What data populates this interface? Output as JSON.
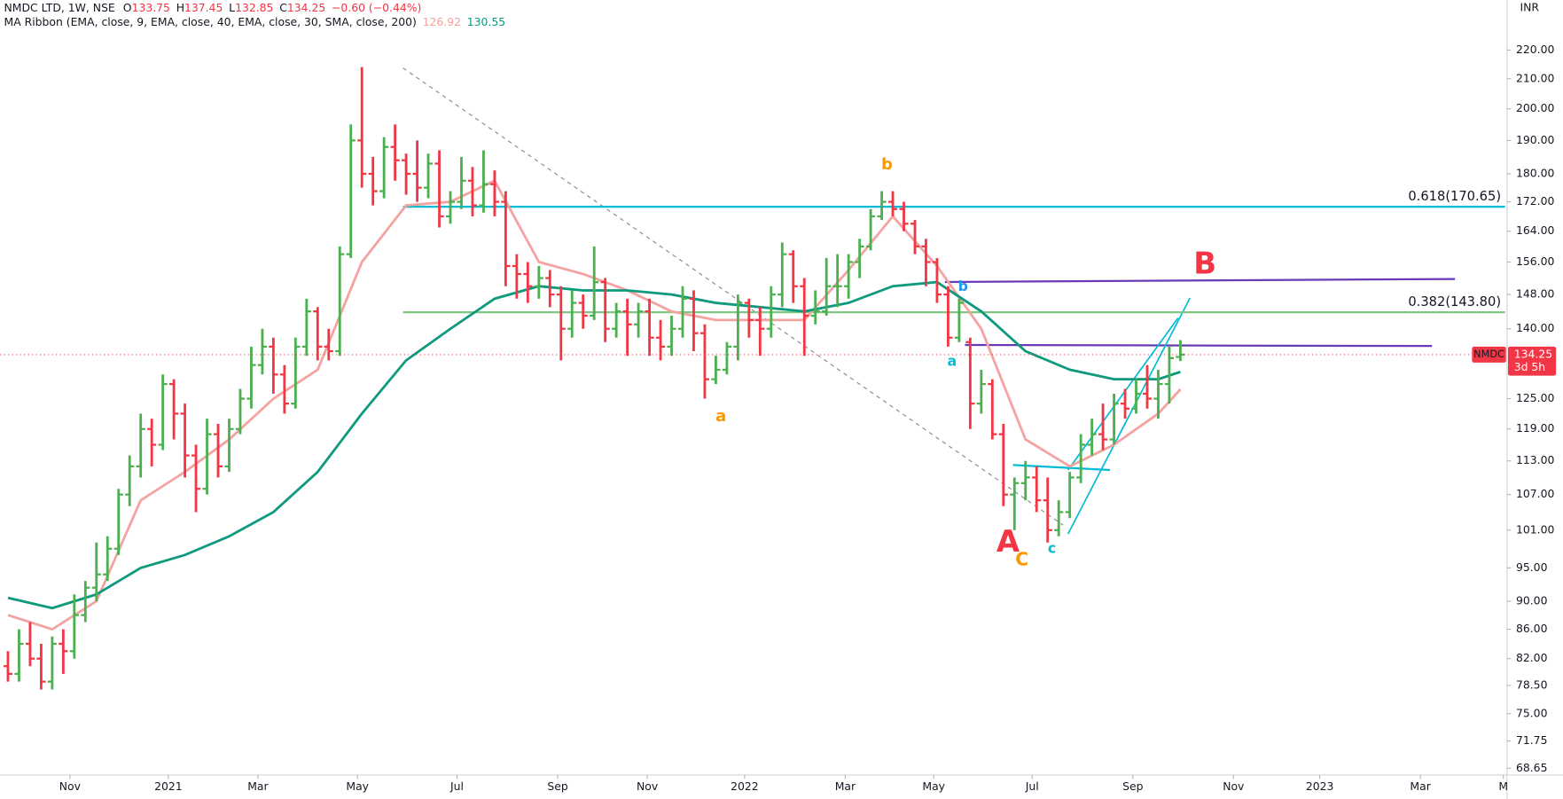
{
  "chart_data": {
    "type": "ohlc",
    "title": "NMDC LTD, 1W, NSE",
    "ohlc_prefixes": [
      "O",
      "H",
      "L",
      "C"
    ],
    "change": "−0.60 (−0.44%)",
    "indicator": "MA Ribbon (EMA, close, 9, EMA, close, 40, EMA, close, 30, SMA, close, 200)",
    "symbol": "NMDC",
    "countdown": "3d 5h",
    "currency": "INR",
    "up_color": "#4caf50",
    "down_color": "#f23645",
    "open": [
      81,
      80,
      84,
      82,
      79,
      84,
      83,
      88,
      92,
      94,
      98,
      107,
      112,
      119,
      116,
      128,
      122,
      114,
      108,
      118,
      112,
      119,
      125,
      132,
      136,
      130,
      124,
      136,
      144,
      136,
      135,
      158,
      190,
      180,
      175,
      188,
      184,
      180,
      176,
      183,
      168,
      172,
      178,
      171,
      177,
      172,
      155,
      153,
      150,
      152,
      148,
      140,
      146,
      143,
      151,
      140,
      144,
      141,
      144,
      138,
      136,
      140,
      147,
      139,
      129,
      131,
      136,
      146,
      142,
      140,
      148,
      158,
      150,
      143,
      144,
      150,
      150,
      156,
      160,
      168,
      172,
      170,
      166,
      160,
      156,
      148,
      138,
      137,
      124,
      128,
      118,
      107,
      109,
      110,
      106,
      101,
      104,
      110,
      116,
      118,
      117,
      124,
      123,
      126,
      125,
      128,
      133.75
    ],
    "high": [
      83,
      86,
      87,
      84,
      85,
      86,
      91,
      93,
      99,
      100,
      108,
      114,
      122,
      121,
      130,
      129,
      124,
      116,
      121,
      120,
      121,
      127,
      136,
      140,
      138,
      132,
      138,
      147,
      145,
      140,
      160,
      195,
      214,
      185,
      191,
      195,
      186,
      190,
      186,
      187,
      175,
      185,
      182,
      187,
      181,
      175,
      158,
      156,
      155,
      154,
      150,
      149,
      148,
      160,
      152,
      146,
      147,
      146,
      147,
      142,
      143,
      150,
      149,
      141,
      134,
      137,
      148,
      147,
      145,
      150,
      161,
      159,
      152,
      149,
      157,
      158,
      158,
      162,
      170,
      175,
      175,
      172,
      167,
      162,
      157,
      150,
      147,
      138,
      131,
      129,
      120,
      110,
      113,
      112,
      110,
      106,
      111,
      118,
      121,
      124,
      126,
      127,
      129,
      132,
      131,
      136,
      137.45
    ],
    "low": [
      79,
      79,
      81,
      78,
      78,
      80,
      82,
      87,
      90,
      93,
      97,
      105,
      110,
      112,
      115,
      117,
      110,
      104,
      107,
      110,
      111,
      118,
      123,
      130,
      126,
      122,
      123,
      134,
      133,
      133,
      134,
      157,
      176,
      171,
      173,
      178,
      174,
      172,
      173,
      165,
      166,
      170,
      168,
      169,
      168,
      150,
      147,
      146,
      147,
      145,
      133,
      138,
      140,
      142,
      137,
      138,
      134,
      138,
      134,
      133,
      134,
      138,
      135,
      125,
      128,
      130,
      133,
      138,
      134,
      138,
      145,
      146,
      134,
      141,
      143,
      145,
      147,
      152,
      159,
      167,
      168,
      164,
      158,
      150,
      146,
      136,
      137,
      119,
      122,
      117,
      105,
      101,
      106,
      104,
      99,
      100,
      103,
      109,
      114,
      115,
      116,
      121,
      122,
      123,
      121,
      124,
      132.85
    ],
    "close": [
      80,
      84,
      82,
      79,
      84,
      83,
      88,
      92,
      94,
      98,
      107,
      112,
      119,
      116,
      128,
      122,
      114,
      108,
      118,
      112,
      119,
      125,
      132,
      136,
      130,
      124,
      136,
      144,
      136,
      135,
      158,
      190,
      180,
      175,
      188,
      184,
      180,
      176,
      183,
      168,
      172,
      178,
      171,
      177,
      172,
      155,
      153,
      150,
      152,
      148,
      140,
      146,
      143,
      151,
      140,
      144,
      141,
      144,
      138,
      136,
      140,
      147,
      139,
      129,
      131,
      136,
      146,
      142,
      140,
      148,
      158,
      150,
      143,
      144,
      150,
      150,
      156,
      160,
      168,
      172,
      170,
      166,
      160,
      156,
      148,
      138,
      146,
      124,
      128,
      118,
      107,
      109,
      110,
      106,
      101,
      104,
      110,
      116,
      118,
      117,
      124,
      123,
      126,
      125,
      128,
      133.5,
      134.25
    ],
    "series": [
      {
        "color": "#f4a3a0",
        "x": [
          0,
          4,
          8,
          12,
          16,
          20,
          24,
          28,
          32,
          36,
          40,
          44,
          48,
          52,
          56,
          60,
          64,
          68,
          72,
          76,
          80,
          84,
          88,
          92,
          96,
          100,
          104,
          106
        ],
        "values": [
          88,
          86,
          90,
          106,
          111,
          117,
          125,
          131,
          156,
          171,
          172,
          178,
          156,
          153,
          149,
          144,
          142,
          142,
          142,
          154,
          168,
          155,
          140,
          117,
          112,
          116,
          122,
          126.92
        ]
      },
      {
        "color": "#0f9a7e",
        "x": [
          0,
          4,
          8,
          12,
          16,
          20,
          24,
          28,
          32,
          36,
          40,
          44,
          48,
          52,
          56,
          60,
          64,
          68,
          72,
          76,
          80,
          84,
          88,
          92,
          96,
          100,
          104,
          106
        ],
        "values": [
          90.5,
          89,
          91,
          95,
          97,
          100,
          104,
          111,
          122,
          133,
          140,
          147,
          150,
          149,
          149,
          148,
          146,
          145,
          144,
          146,
          150,
          151,
          144,
          135,
          131,
          129,
          129,
          130.55
        ]
      }
    ],
    "xlim": [
      -0.72,
      135.35
    ],
    "xticks": [
      {
        "value": 5.6,
        "label": "Nov"
      },
      {
        "value": 14.5,
        "label": "2021"
      },
      {
        "value": 22.6,
        "label": "Mar"
      },
      {
        "value": 31.6,
        "label": "May"
      },
      {
        "value": 40.6,
        "label": "Jul"
      },
      {
        "value": 49.7,
        "label": "Sep"
      },
      {
        "value": 57.8,
        "label": "Nov"
      },
      {
        "value": 66.6,
        "label": "2022"
      },
      {
        "value": 75.7,
        "label": "Mar"
      },
      {
        "value": 83.7,
        "label": "May"
      },
      {
        "value": 92.6,
        "label": "Jul"
      },
      {
        "value": 101.7,
        "label": "Sep"
      },
      {
        "value": 110.8,
        "label": "Nov"
      },
      {
        "value": 118.6,
        "label": "2023"
      },
      {
        "value": 127.7,
        "label": "Mar"
      },
      {
        "value": 135.2,
        "label": "M"
      }
    ],
    "ylim": [
      67.9,
      238.6
    ],
    "log_scale": true,
    "yticks": [
      {
        "value": 220,
        "label": "220.00"
      },
      {
        "value": 210,
        "label": "210.00"
      },
      {
        "value": 200,
        "label": "200.00"
      },
      {
        "value": 190,
        "label": "190.00"
      },
      {
        "value": 180,
        "label": "180.00"
      },
      {
        "value": 172,
        "label": "172.00"
      },
      {
        "value": 164,
        "label": "164.00"
      },
      {
        "value": 156,
        "label": "156.00"
      },
      {
        "value": 148,
        "label": "148.00"
      },
      {
        "value": 140,
        "label": "140.00"
      },
      {
        "value": 125,
        "label": "125.00"
      },
      {
        "value": 119,
        "label": "119.00"
      },
      {
        "value": 113,
        "label": "113.00"
      },
      {
        "value": 107,
        "label": "107.00"
      },
      {
        "value": 101,
        "label": "101.00"
      },
      {
        "value": 95,
        "label": "95.00"
      },
      {
        "value": 90,
        "label": "90.00"
      },
      {
        "value": 86,
        "label": "86.00"
      },
      {
        "value": 82,
        "label": "82.00"
      },
      {
        "value": 78.5,
        "label": "78.50"
      },
      {
        "value": 75,
        "label": "75.00"
      },
      {
        "value": 71.75,
        "label": "71.75"
      },
      {
        "value": 68.65,
        "label": "68.65"
      }
    ],
    "fib_levels": [
      {
        "value": 170.65,
        "label": "0.618(170.65)",
        "color": "#00bcd4"
      },
      {
        "value": 143.8,
        "label": "0.382(143.80)",
        "color": "#81c784"
      }
    ],
    "annotations": [
      {
        "text": "b",
        "color": "#ff9800"
      },
      {
        "text": "a",
        "color": "#ff9800"
      },
      {
        "text": "a",
        "color": "#00bcd4"
      },
      {
        "text": "b",
        "color": "#2196f3"
      },
      {
        "text": "B",
        "color": "#f23645"
      },
      {
        "text": "A",
        "color": "#f23645"
      },
      {
        "text": "C",
        "color": "#ff9800"
      },
      {
        "text": "c",
        "color": "#00bcd4"
      }
    ]
  }
}
